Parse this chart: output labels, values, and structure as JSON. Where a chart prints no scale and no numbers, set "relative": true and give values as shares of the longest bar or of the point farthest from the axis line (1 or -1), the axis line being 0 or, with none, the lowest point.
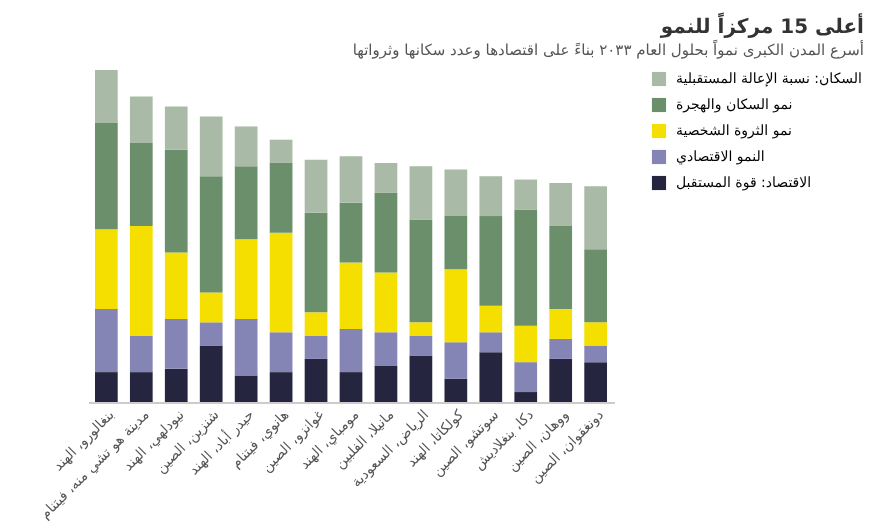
{
  "chart_data": {
    "type": "bar",
    "title": "أعلى 15 مركزاً للنمو",
    "subtitle": "أسرع المدن الكبرى نمواً بحلول العام ٢٠٣٣ بناءً على اقتصادها وعدد سكانها وثرواتها",
    "categories": [
      "بنغالورو، الهند",
      "مدينة هو تشي منه، فيتنام",
      "نيودلهي، الهند",
      "شنزين، الصين",
      "حيدر أباد، الهند",
      "هانوي، فيتنام",
      "غوانزو، الصين",
      "مومباي، الهند",
      "مانيلا، الفلبين",
      "الرياض، السعودية",
      "كولكاتا، الهند",
      "سوتشو، الصين",
      "دكا، بنغلاديش",
      "ووهان، الصين",
      "دونغقوان، الصين"
    ],
    "stacked": true,
    "relative": true,
    "legend": "right",
    "series": [
      {
        "name": "الاقتصاد: قوة المستقبل",
        "color": "#25253f",
        "values": [
          0.09,
          0.09,
          0.1,
          0.17,
          0.08,
          0.09,
          0.13,
          0.09,
          0.11,
          0.14,
          0.07,
          0.15,
          0.03,
          0.13,
          0.12
        ]
      },
      {
        "name": "النمو الاقتصادي",
        "color": "#8585b5",
        "values": [
          0.19,
          0.11,
          0.15,
          0.07,
          0.17,
          0.12,
          0.07,
          0.13,
          0.1,
          0.06,
          0.11,
          0.06,
          0.09,
          0.06,
          0.05
        ]
      },
      {
        "name": "نمو الثروة الشخصية",
        "color": "#f4df00",
        "values": [
          0.24,
          0.33,
          0.2,
          0.09,
          0.24,
          0.3,
          0.07,
          0.2,
          0.18,
          0.04,
          0.22,
          0.08,
          0.11,
          0.09,
          0.07
        ]
      },
      {
        "name": "نمو السكان والهجرة",
        "color": "#6b8f6b",
        "values": [
          0.32,
          0.25,
          0.31,
          0.35,
          0.22,
          0.21,
          0.3,
          0.18,
          0.24,
          0.31,
          0.16,
          0.27,
          0.35,
          0.25,
          0.22
        ]
      },
      {
        "name": "السكان: نسبة الإعالة المستقبلية",
        "color": "#a9bba6",
        "values": [
          0.16,
          0.14,
          0.13,
          0.18,
          0.12,
          0.07,
          0.16,
          0.14,
          0.09,
          0.16,
          0.14,
          0.12,
          0.09,
          0.13,
          0.19
        ]
      }
    ]
  }
}
